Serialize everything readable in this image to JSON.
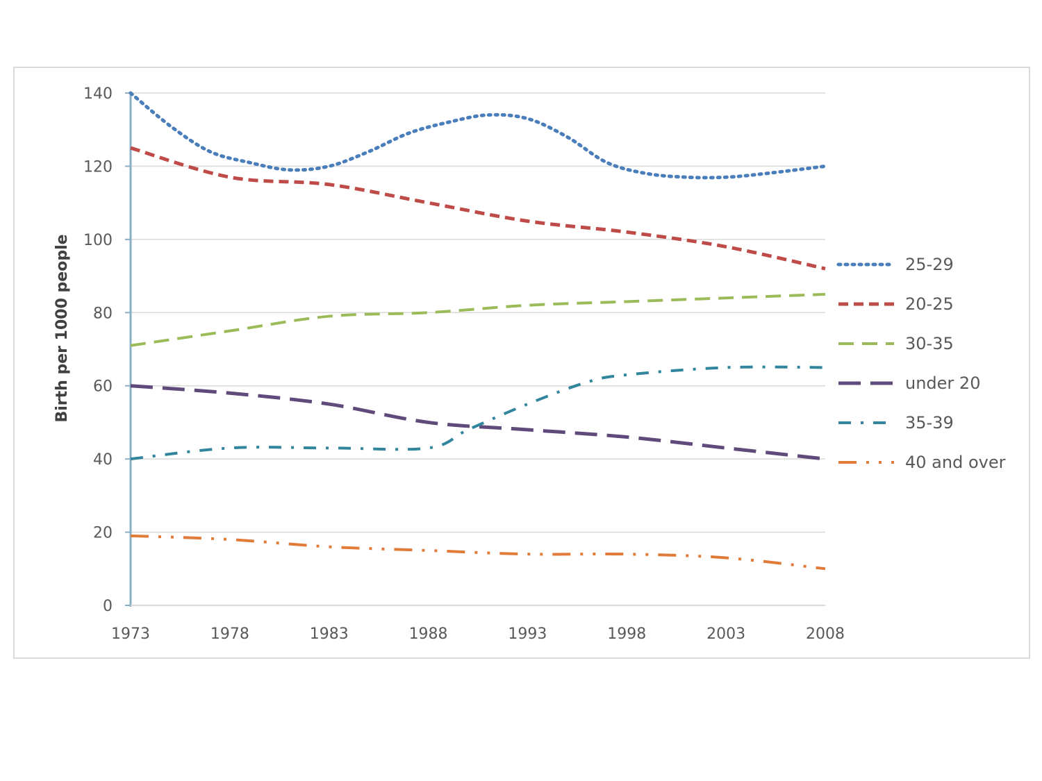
{
  "chart_data": {
    "type": "line",
    "title": "",
    "xlabel": "",
    "ylabel": "Birth per  1000 people",
    "x": [
      1973,
      1978,
      1983,
      1988,
      1993,
      1998,
      2003,
      2008
    ],
    "xticks": [
      "1973",
      "1978",
      "1983",
      "1988",
      "1993",
      "1998",
      "2003",
      "2008"
    ],
    "yticks": [
      "0",
      "20",
      "40",
      "60",
      "80",
      "100",
      "120",
      "140"
    ],
    "ylim": [
      0,
      140
    ],
    "xlim": [
      1973,
      2008
    ],
    "grid": true,
    "legend_position": "right",
    "series": [
      {
        "name": "25-29",
        "color": "#4a7ebb",
        "dash": "dotted",
        "x": [
          1973,
          1975,
          1977,
          1979,
          1981,
          1983,
          1985,
          1987,
          1989,
          1991,
          1993,
          1995,
          1997,
          1999,
          2001,
          2003,
          2005,
          2008
        ],
        "values": [
          140,
          131,
          124,
          121,
          119,
          120,
          124,
          129,
          132,
          134,
          133,
          128,
          121,
          118,
          117,
          117,
          118,
          120
        ]
      },
      {
        "name": "20-25",
        "color": "#be4b48",
        "dash": "dash",
        "x": [
          1973,
          1978,
          1983,
          1988,
          1993,
          1998,
          2003,
          2008
        ],
        "values": [
          125,
          117,
          115,
          110,
          105,
          102,
          98,
          92
        ]
      },
      {
        "name": "30-35",
        "color": "#9bbb59",
        "dash": "longdash",
        "x": [
          1973,
          1978,
          1983,
          1988,
          1993,
          1998,
          2003,
          2008
        ],
        "values": [
          71,
          75,
          79,
          80,
          82,
          83,
          84,
          85
        ]
      },
      {
        "name": "under 20",
        "color": "#604a7b",
        "dash": "verylongdash",
        "x": [
          1973,
          1978,
          1983,
          1988,
          1993,
          1998,
          2003,
          2008
        ],
        "values": [
          60,
          58,
          55,
          50,
          48,
          46,
          43,
          40
        ]
      },
      {
        "name": "35-39",
        "color": "#31859c",
        "dash": "dashdot",
        "x": [
          1973,
          1978,
          1983,
          1988,
          1990,
          1993,
          1996,
          1998,
          2003,
          2008
        ],
        "values": [
          40,
          43,
          43,
          43,
          48,
          55,
          61,
          63,
          65,
          65
        ]
      },
      {
        "name": "40 and over",
        "color": "#e07b39",
        "dash": "longdashdotdot",
        "x": [
          1973,
          1978,
          1983,
          1988,
          1993,
          1998,
          2003,
          2008
        ],
        "values": [
          19,
          18,
          16,
          15,
          14,
          14,
          13,
          10
        ]
      }
    ]
  }
}
